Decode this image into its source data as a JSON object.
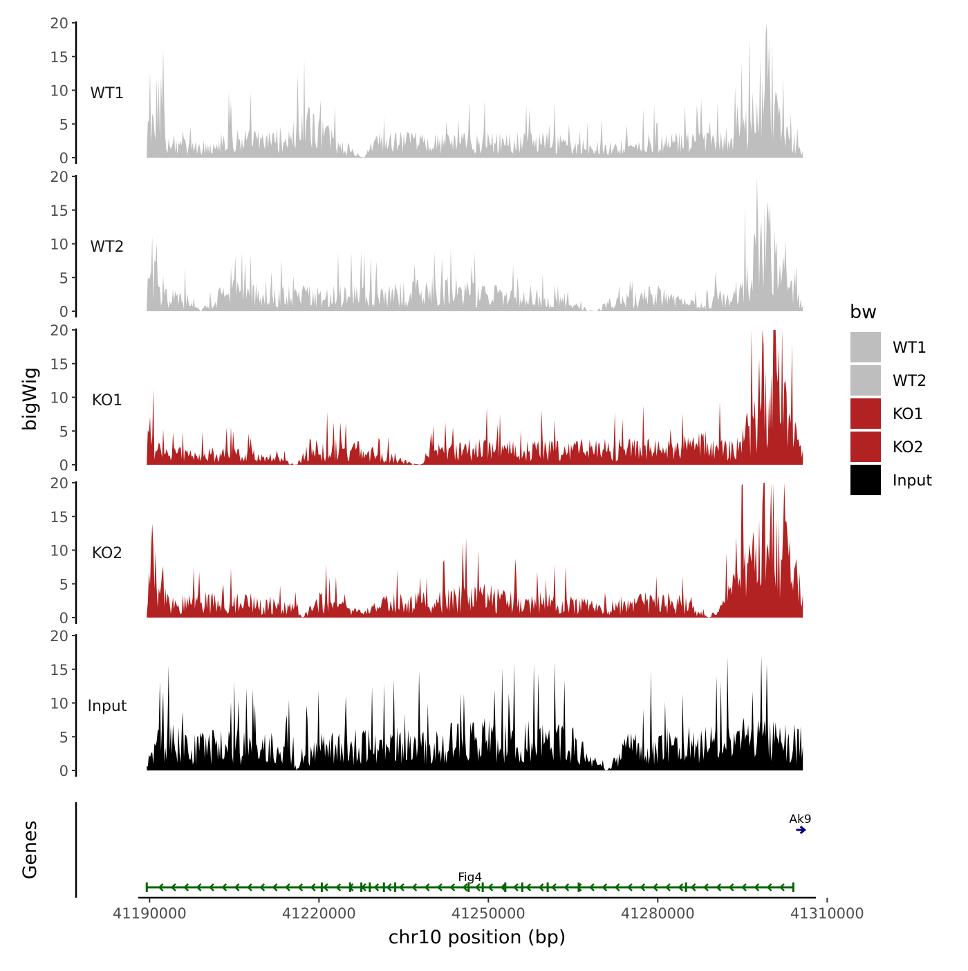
{
  "chart_data": {
    "type": "area",
    "y_axis_title": "bigWig",
    "genes_axis_title": "Genes",
    "x_axis_title": "chr10 position (bp)",
    "ylim": [
      0,
      20
    ],
    "y_ticks": [
      0,
      5,
      10,
      15,
      20
    ],
    "xlim": [
      41188000,
      41308000
    ],
    "x_ticks": [
      41190000,
      41220000,
      41250000,
      41280000,
      41310000
    ],
    "x_tick_labels": [
      "41190000",
      "41220000",
      "41250000",
      "41280000",
      "41310000"
    ],
    "signal_start": 41189500,
    "signal_end": 41305700,
    "legend": {
      "title": "bw",
      "entries": [
        {
          "label": "WT1",
          "color": "#bebebe"
        },
        {
          "label": "WT2",
          "color": "#bebebe"
        },
        {
          "label": "KO1",
          "color": "#b22222"
        },
        {
          "label": "KO2",
          "color": "#b22222"
        },
        {
          "label": "Input",
          "color": "#000000"
        }
      ]
    },
    "tracks": [
      {
        "name": "WT1",
        "color": "#bebebe",
        "profile": [
          [
            41189500,
            1
          ],
          [
            41190000,
            13
          ],
          [
            41191000,
            3
          ],
          [
            41192000,
            13
          ],
          [
            41193000,
            3
          ],
          [
            41197000,
            2
          ],
          [
            41200000,
            2
          ],
          [
            41202000,
            3
          ],
          [
            41205000,
            4
          ],
          [
            41210000,
            3
          ],
          [
            41215000,
            4
          ],
          [
            41218000,
            6
          ],
          [
            41228000,
            0
          ],
          [
            41230000,
            3
          ],
          [
            41240000,
            3
          ],
          [
            41250000,
            3
          ],
          [
            41260000,
            3
          ],
          [
            41270000,
            2
          ],
          [
            41280000,
            3
          ],
          [
            41290000,
            3
          ],
          [
            41294000,
            4
          ],
          [
            41296000,
            7
          ],
          [
            41298000,
            12
          ],
          [
            41299500,
            20
          ],
          [
            41300500,
            12
          ],
          [
            41302000,
            6
          ],
          [
            41305700,
            1
          ]
        ]
      },
      {
        "name": "WT2",
        "color": "#bebebe",
        "profile": [
          [
            41189500,
            1
          ],
          [
            41190500,
            9
          ],
          [
            41191500,
            3
          ],
          [
            41198000,
            2
          ],
          [
            41199000,
            0
          ],
          [
            41202000,
            3
          ],
          [
            41206000,
            4
          ],
          [
            41210000,
            3
          ],
          [
            41220000,
            3
          ],
          [
            41230000,
            3
          ],
          [
            41240000,
            4
          ],
          [
            41245000,
            4
          ],
          [
            41250000,
            3
          ],
          [
            41258000,
            3
          ],
          [
            41269000,
            0
          ],
          [
            41272000,
            2
          ],
          [
            41280000,
            3
          ],
          [
            41288000,
            1
          ],
          [
            41292000,
            3
          ],
          [
            41294000,
            4
          ],
          [
            41296000,
            6
          ],
          [
            41298000,
            12
          ],
          [
            41299500,
            17
          ],
          [
            41300500,
            13
          ],
          [
            41303000,
            5
          ],
          [
            41305700,
            1
          ]
        ]
      },
      {
        "name": "KO1",
        "color": "#b22222",
        "profile": [
          [
            41189500,
            1
          ],
          [
            41190000,
            10
          ],
          [
            41191000,
            3
          ],
          [
            41196000,
            2
          ],
          [
            41204000,
            2
          ],
          [
            41210000,
            2
          ],
          [
            41216000,
            0
          ],
          [
            41218000,
            3
          ],
          [
            41226000,
            3
          ],
          [
            41238000,
            0
          ],
          [
            41240000,
            3
          ],
          [
            41250000,
            3
          ],
          [
            41258000,
            3
          ],
          [
            41270000,
            3
          ],
          [
            41280000,
            3
          ],
          [
            41288000,
            4
          ],
          [
            41294000,
            3
          ],
          [
            41297000,
            10
          ],
          [
            41299000,
            15
          ],
          [
            41300500,
            18
          ],
          [
            41302000,
            11
          ],
          [
            41305700,
            3
          ]
        ]
      },
      {
        "name": "KO2",
        "color": "#b22222",
        "profile": [
          [
            41189500,
            1
          ],
          [
            41190500,
            13
          ],
          [
            41191500,
            4
          ],
          [
            41196000,
            3
          ],
          [
            41206000,
            3
          ],
          [
            41216000,
            2
          ],
          [
            41217000,
            0
          ],
          [
            41220000,
            3
          ],
          [
            41228000,
            1
          ],
          [
            41232000,
            3
          ],
          [
            41240000,
            3
          ],
          [
            41246000,
            4
          ],
          [
            41250000,
            4
          ],
          [
            41255000,
            3
          ],
          [
            41262000,
            3
          ],
          [
            41270000,
            2
          ],
          [
            41278000,
            3
          ],
          [
            41284000,
            3
          ],
          [
            41289000,
            0
          ],
          [
            41292000,
            3
          ],
          [
            41297000,
            10
          ],
          [
            41299000,
            17
          ],
          [
            41300500,
            19
          ],
          [
            41302000,
            13
          ],
          [
            41305700,
            5
          ]
        ]
      },
      {
        "name": "Input",
        "color": "#000000",
        "profile": [
          [
            41189500,
            2
          ],
          [
            41190500,
            6
          ],
          [
            41196000,
            5
          ],
          [
            41205000,
            5
          ],
          [
            41215000,
            4
          ],
          [
            41216000,
            0
          ],
          [
            41218000,
            4
          ],
          [
            41225000,
            5
          ],
          [
            41235000,
            5
          ],
          [
            41245000,
            6
          ],
          [
            41255000,
            6
          ],
          [
            41258000,
            6
          ],
          [
            41265000,
            5
          ],
          [
            41271000,
            0
          ],
          [
            41275000,
            5
          ],
          [
            41285000,
            5
          ],
          [
            41295000,
            6
          ],
          [
            41302000,
            6
          ],
          [
            41305700,
            6
          ]
        ]
      }
    ],
    "genes": [
      {
        "name": "Fig4",
        "start": 41189500,
        "end": 41304000,
        "strand": "-",
        "color": "#006400",
        "exons": [
          41189500,
          41220500,
          41225500,
          41227500,
          41229000,
          41231500,
          41233500,
          41246500,
          41249000,
          41253000,
          41256000,
          41260500,
          41266000,
          41285000,
          41304000
        ]
      },
      {
        "name": "Ak9",
        "start": 41304500,
        "end": 41306000,
        "strand": "+",
        "color": "#00008b",
        "exons": []
      }
    ]
  }
}
